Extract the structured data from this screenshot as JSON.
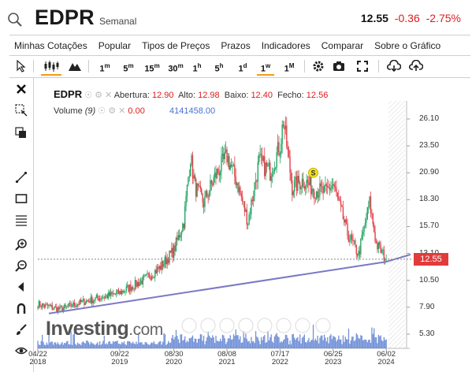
{
  "header": {
    "symbol": "EDPR",
    "period": "Semanal",
    "last_price": "12.55",
    "change": "-0.36",
    "change_pct": "-2.75%"
  },
  "menu": [
    "Minhas Cotações",
    "Popular",
    "Tipos de Preços",
    "Prazos",
    "Indicadores",
    "Comparar",
    "Sobre o Gráfico"
  ],
  "toolbar": {
    "intervals": [
      {
        "base": "1",
        "sup": "m"
      },
      {
        "base": "5",
        "sup": "m"
      },
      {
        "base": "15",
        "sup": "m"
      },
      {
        "base": "30",
        "sup": "m"
      },
      {
        "base": "1",
        "sup": "h"
      },
      {
        "base": "5",
        "sup": "h"
      },
      {
        "base": "1",
        "sup": "d"
      },
      {
        "base": "1",
        "sup": "w"
      },
      {
        "base": "1",
        "sup": "M"
      }
    ],
    "active_interval": "1w",
    "chart_types": [
      "candlestick-icon",
      "mountain-icon"
    ],
    "actions": [
      "gear-icon",
      "camera-icon",
      "fullscreen-icon",
      "download-icon",
      "upload-icon"
    ]
  },
  "left_tools": [
    "close-icon",
    "cursor-cross-icon",
    "clone-icon",
    "line-tool-icon",
    "rectangle-icon",
    "fib-lines-icon",
    "zoom-in-icon",
    "zoom-out-icon",
    "scroll-left-icon",
    "magnet-icon",
    "brush-icon",
    "eye-icon"
  ],
  "legend": {
    "symbol": "EDPR",
    "open_label": "Abertura:",
    "open": "12.90",
    "high_label": "Alto:",
    "high": "12.98",
    "low_label": "Baixo:",
    "low": "12.40",
    "close_label": "Fecho:",
    "close": "12.56",
    "volume_label": "Volume",
    "volume_param": "(9)",
    "volume_value": "0.00",
    "volume_series_value": "4141458.00"
  },
  "logo": {
    "main": "Investing",
    "suffix": ".com"
  },
  "current_price_label": "12.55",
  "event_marker": "S",
  "colors": {
    "up": "#27a566",
    "down": "#e2404a",
    "trendline": "#7b79c4",
    "volume": "#5a7fd1",
    "price_tag": "#e23b3b",
    "change": "#e01b1b",
    "active": "#f39c12"
  },
  "chart_data": {
    "type": "candlestick",
    "title": "EDPR",
    "interval": "Semanal",
    "y_ticks": [
      "26.10",
      "23.50",
      "20.90",
      "18.30",
      "15.70",
      "13.10",
      "10.50",
      "7.90",
      "5.30"
    ],
    "y_tick_values": [
      26.1,
      23.5,
      20.9,
      18.3,
      15.7,
      13.1,
      10.5,
      7.9,
      5.3
    ],
    "ylim": [
      3.7,
      28.0
    ],
    "x_ticks": [
      {
        "date": "04/22",
        "year": "2018"
      },
      {
        "date": "09/22",
        "year": "2019"
      },
      {
        "date": "08/30",
        "year": "2020"
      },
      {
        "date": "08/08",
        "year": "2021"
      },
      {
        "date": "07/17",
        "year": "2022"
      },
      {
        "date": "06/25",
        "year": "2023"
      },
      {
        "date": "06/02",
        "year": "2024"
      }
    ],
    "x_tick_values": [
      0,
      74,
      123,
      171,
      219,
      267,
      315
    ],
    "xlim": [
      0,
      332
    ],
    "close_series_anchors": [
      [
        0,
        8.2
      ],
      [
        20,
        7.7
      ],
      [
        40,
        8.4
      ],
      [
        74,
        9.3
      ],
      [
        95,
        10.5
      ],
      [
        110,
        11.7
      ],
      [
        123,
        13.4
      ],
      [
        132,
        16.2
      ],
      [
        138,
        22.5
      ],
      [
        142,
        19.6
      ],
      [
        150,
        18.0
      ],
      [
        160,
        20.5
      ],
      [
        171,
        22.5
      ],
      [
        180,
        20.0
      ],
      [
        190,
        16.2
      ],
      [
        200,
        22.0
      ],
      [
        210,
        21.0
      ],
      [
        219,
        23.5
      ],
      [
        222,
        26.0
      ],
      [
        230,
        19.5
      ],
      [
        240,
        20.2
      ],
      [
        250,
        19.3
      ],
      [
        260,
        19.0
      ],
      [
        267,
        19.8
      ],
      [
        280,
        15.0
      ],
      [
        290,
        13.0
      ],
      [
        300,
        18.0
      ],
      [
        306,
        14.0
      ],
      [
        315,
        12.55
      ]
    ],
    "current_price": 12.55,
    "last_bar": {
      "open": 12.9,
      "high": 12.98,
      "low": 12.4,
      "close": 12.56
    },
    "trendline": [
      [
        10,
        7.3
      ],
      [
        315,
        12.3
      ],
      [
        337,
        13.0
      ]
    ],
    "event_marker": {
      "x": 249,
      "y": 20.9,
      "label": "S"
    }
  }
}
